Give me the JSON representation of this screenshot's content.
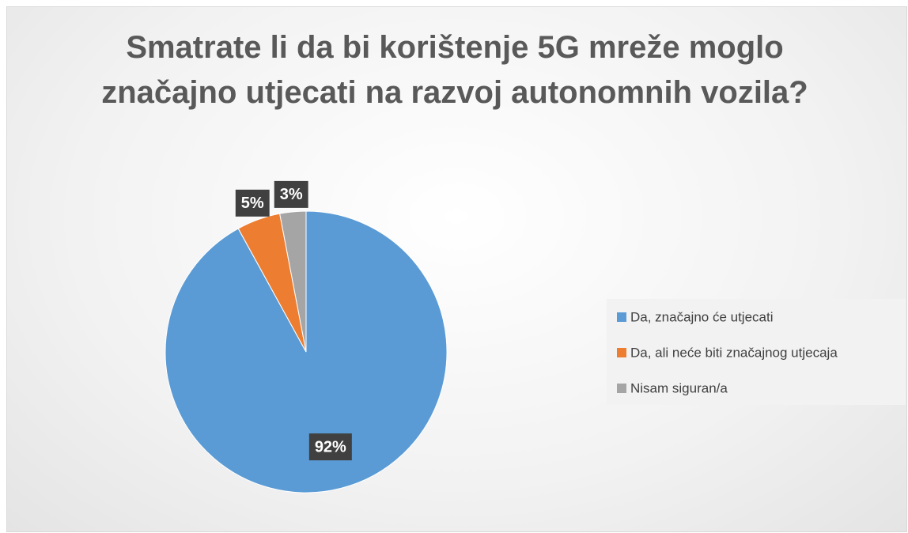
{
  "chart_data": {
    "type": "pie",
    "title": "Smatrate li da bi korištenje 5G mreže moglo značajno utjecati na razvoj autonomnih vozila?",
    "categories": [
      "Da, značajno će utjecati",
      "Da, ali neće biti značajnog utjecaja",
      "Nisam siguran/a"
    ],
    "values": [
      92,
      5,
      3
    ],
    "value_labels": [
      "92%",
      "5%",
      "3%"
    ],
    "colors": [
      "#5b9bd5",
      "#ed7d31",
      "#a5a5a5"
    ],
    "legend": "right"
  }
}
